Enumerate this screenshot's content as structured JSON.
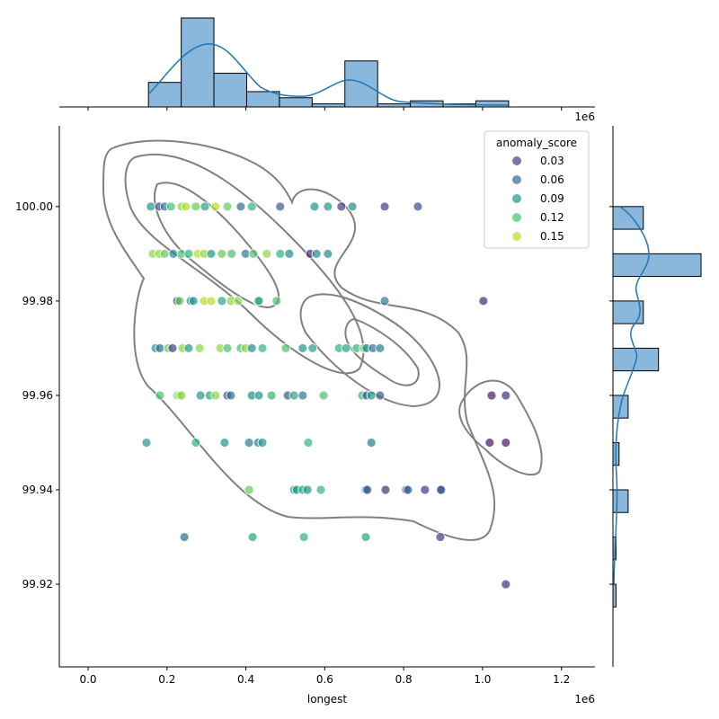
{
  "chart_data": {
    "type": "scatter",
    "variant": "jointplot with kde contours and marginal histograms",
    "xlabel": "longest",
    "ylabel": "",
    "x_offset_label": "1e6",
    "top_offset_label": "1e6",
    "xlim": [
      -0.073,
      1.285
    ],
    "ylim": [
      99.9025,
      100.0171
    ],
    "x_ticks": [
      "0.0",
      "0.2",
      "0.4",
      "0.6",
      "0.8",
      "1.0",
      "1.2"
    ],
    "y_ticks": [
      "99.92",
      "99.94",
      "99.96",
      "99.98",
      "100.00"
    ],
    "grid": false,
    "legend": {
      "title": "anomaly_score",
      "placement": "top-right",
      "entries": [
        "0.03",
        "0.06",
        "0.09",
        "0.12",
        "0.15"
      ]
    },
    "colormap": "viridis",
    "hue_range": [
      0.0,
      0.17
    ],
    "rows": [
      {
        "y": 100.0,
        "x": [
          0.159,
          0.18,
          0.194,
          0.21,
          0.237,
          0.248,
          0.273,
          0.296,
          0.323,
          0.353,
          0.387,
          0.415,
          0.487,
          0.574,
          0.608,
          0.642,
          0.67,
          0.752,
          0.836
        ],
        "score": [
          0.09,
          0.04,
          0.07,
          0.12,
          0.14,
          0.15,
          0.13,
          0.1,
          0.15,
          0.13,
          0.06,
          0.11,
          0.05,
          0.09,
          0.09,
          0.03,
          0.08,
          0.03,
          0.04
        ]
      },
      {
        "y": 99.99,
        "x": [
          0.164,
          0.18,
          0.194,
          0.216,
          0.237,
          0.255,
          0.278,
          0.294,
          0.312,
          0.339,
          0.364,
          0.399,
          0.419,
          0.453,
          0.487,
          0.51,
          0.563,
          0.579,
          0.608
        ],
        "score": [
          0.14,
          0.14,
          0.13,
          0.08,
          0.12,
          0.11,
          0.15,
          0.14,
          0.09,
          0.13,
          0.12,
          0.07,
          0.12,
          0.14,
          0.11,
          0.08,
          0.02,
          0.08,
          0.08
        ]
      },
      {
        "y": 99.98,
        "x": [
          0.226,
          0.232,
          0.26,
          0.267,
          0.294,
          0.312,
          0.339,
          0.362,
          0.38,
          0.43,
          0.433,
          0.478,
          0.752,
          1.002
        ],
        "score": [
          0.02,
          0.13,
          0.08,
          0.09,
          0.15,
          0.15,
          0.1,
          0.14,
          0.14,
          0.13,
          0.09,
          0.12,
          0.07,
          0.02
        ]
      },
      {
        "y": 99.97,
        "x": [
          0.171,
          0.182,
          0.203,
          0.214,
          0.239,
          0.255,
          0.283,
          0.335,
          0.353,
          0.387,
          0.399,
          0.415,
          0.442,
          0.501,
          0.544,
          0.569,
          0.636,
          0.654,
          0.681,
          0.699,
          0.706,
          0.722,
          0.74
        ],
        "score": [
          0.09,
          0.06,
          0.13,
          0.03,
          0.14,
          0.09,
          0.14,
          0.14,
          0.12,
          0.12,
          0.14,
          0.08,
          0.11,
          0.12,
          0.09,
          0.1,
          0.11,
          0.1,
          0.11,
          0.13,
          0.08,
          0.06,
          0.07
        ]
      },
      {
        "y": 99.96,
        "x": [
          0.182,
          0.226,
          0.232,
          0.237,
          0.285,
          0.308,
          0.323,
          0.353,
          0.362,
          0.415,
          0.433,
          0.465,
          0.506,
          0.522,
          0.544,
          0.597,
          0.695,
          0.706,
          0.718,
          0.74,
          1.023,
          1.059
        ],
        "score": [
          0.12,
          0.13,
          0.14,
          0.14,
          0.09,
          0.1,
          0.14,
          0.05,
          0.06,
          0.08,
          0.09,
          0.11,
          0.05,
          0.1,
          0.07,
          0.12,
          0.11,
          0.05,
          0.09,
          0.05,
          0.01,
          0.02
        ]
      },
      {
        "y": 99.95,
        "x": [
          0.148,
          0.273,
          0.346,
          0.408,
          0.431,
          0.442,
          0.558,
          0.718,
          1.018,
          1.059
        ],
        "score": [
          0.09,
          0.11,
          0.09,
          0.07,
          0.07,
          0.09,
          0.11,
          0.07,
          0.01,
          0.01
        ]
      },
      {
        "y": 99.94,
        "x": [
          0.408,
          0.522,
          0.529,
          0.544,
          0.556,
          0.59,
          0.704,
          0.708,
          0.754,
          0.806,
          0.811,
          0.854,
          0.893,
          0.895
        ],
        "score": [
          0.13,
          0.1,
          0.09,
          0.1,
          0.09,
          0.11,
          0.05,
          0.05,
          0.02,
          0.05,
          0.05,
          0.03,
          0.05,
          0.04
        ]
      },
      {
        "y": 99.93,
        "x": [
          0.244,
          0.417,
          0.547,
          0.704,
          0.893
        ],
        "score": [
          0.06,
          0.1,
          0.11,
          0.1,
          0.03
        ]
      },
      {
        "y": 99.92,
        "x": [
          1.059
        ],
        "score": [
          0.02
        ]
      }
    ],
    "x_histogram": {
      "bin_start": 0.153,
      "bin_width": 0.083,
      "counts": [
        8,
        29,
        11,
        5,
        3,
        1,
        15,
        1,
        2,
        1,
        2
      ]
    },
    "y_histogram": {
      "bin_tops": [
        100.0,
        99.99,
        99.98,
        99.97,
        99.96,
        99.95,
        99.94,
        99.93,
        99.92
      ],
      "bin_height": 0.0048,
      "counts": [
        10,
        29,
        10,
        15,
        5,
        2,
        5,
        1,
        1
      ]
    },
    "colors": {
      "hist_fill": "#8ab8dc",
      "kde_line": "#1f77b4",
      "contour": "#808080"
    }
  }
}
